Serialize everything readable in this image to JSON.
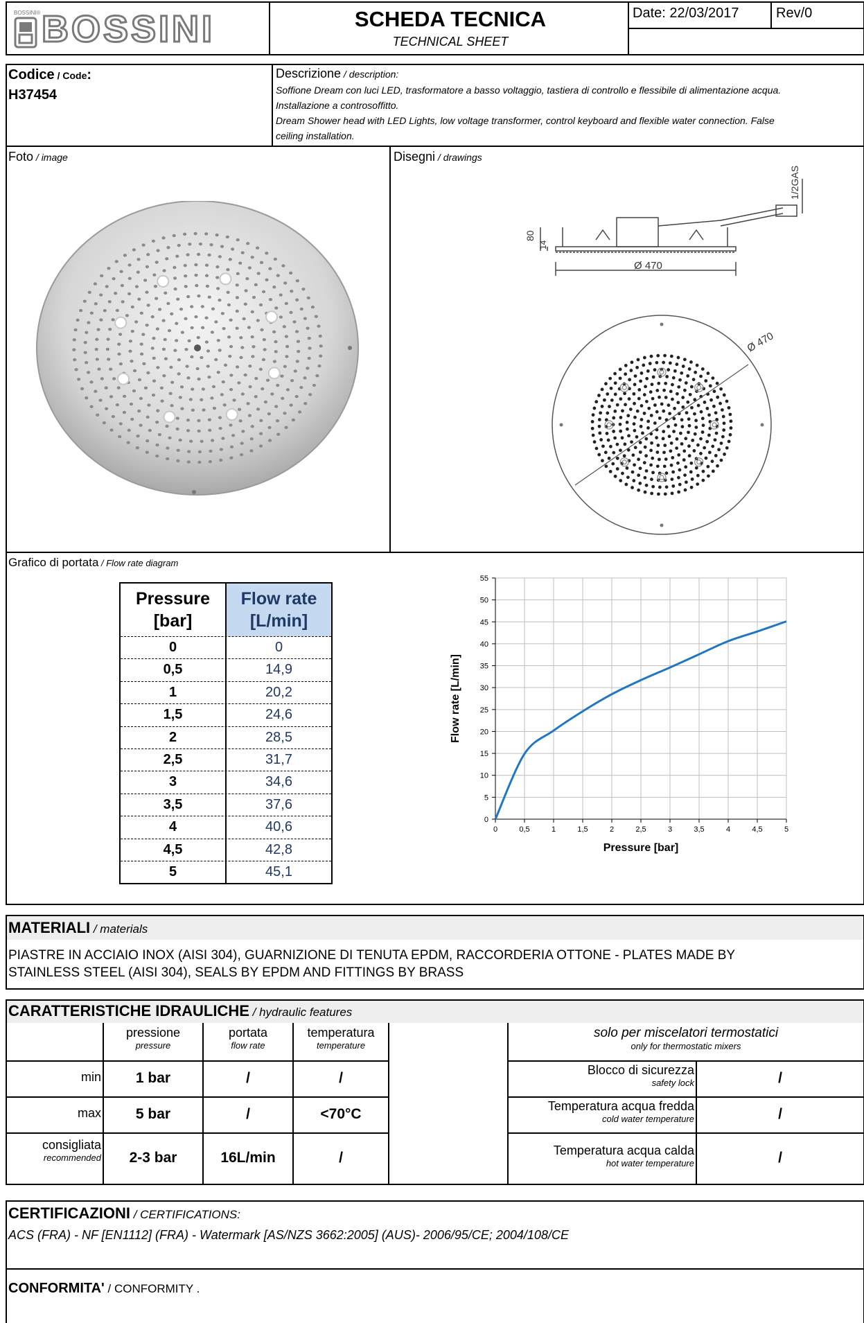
{
  "header": {
    "brand_small": "BOSSINI®",
    "brand": "BOSSINI",
    "title": "SCHEDA TECNICA",
    "subtitle": "TECHNICAL SHEET",
    "date": "Date: 22/03/2017",
    "rev": "Rev/0"
  },
  "code": {
    "label": "Codice",
    "label_en": " / Code",
    "colon": ":",
    "value": "H37454"
  },
  "description": {
    "label": "Descrizione",
    "label_en": " / description:",
    "line1": "Soffione Dream con luci LED, trasformatore a basso voltaggio, tastiera di controllo e flessibile di alimentazione acqua.",
    "line2": "Installazione a controsoffitto.",
    "line3": "Dream Shower head with LED Lights, low voltage transformer, control keyboard and flexible water connection. False",
    "line4": "ceiling installation."
  },
  "photo": {
    "label": "Foto",
    "label_en": " / image"
  },
  "drawings": {
    "label": "Disegni",
    "label_en": " / drawings",
    "dim_gas": "1/2GAS",
    "dim_80": "80",
    "dim_14": "14",
    "dim_diam_side": "Ø 470",
    "dim_diam_top": "Ø 470"
  },
  "flow": {
    "label": "Grafico di portata",
    "label_en": " / Flow rate diagram",
    "table_headers": [
      "Pressure [bar]",
      "Flow rate [L/min]"
    ],
    "table_header_lines": [
      [
        "Pressure",
        "[bar]"
      ],
      [
        "Flow rate",
        "[L/min]"
      ]
    ],
    "pressure": [
      "0",
      "0,5",
      "1",
      "1,5",
      "2",
      "2,5",
      "3",
      "3,5",
      "4",
      "4,5",
      "5"
    ],
    "flowrate": [
      "0",
      "14,9",
      "20,2",
      "24,6",
      "28,5",
      "31,7",
      "34,6",
      "37,6",
      "40,6",
      "42,8",
      "45,1"
    ]
  },
  "chart_data": {
    "type": "line",
    "title": "",
    "xlabel": "Pressure [bar]",
    "ylabel": "Flow rate [L/min]",
    "xlim": [
      0,
      5
    ],
    "ylim": [
      0,
      55
    ],
    "xticks": [
      "0",
      "0,5",
      "1",
      "1,5",
      "2",
      "2,5",
      "3",
      "3,5",
      "4",
      "4,5",
      "5"
    ],
    "yticks": [
      "0",
      "5",
      "10",
      "15",
      "20",
      "25",
      "30",
      "35",
      "40",
      "45",
      "50",
      "55"
    ],
    "grid": true,
    "line_color": "#1f77c4",
    "x": [
      0,
      0.5,
      1,
      1.5,
      2,
      2.5,
      3,
      3.5,
      4,
      4.5,
      5
    ],
    "values": [
      0,
      14.9,
      20.2,
      24.6,
      28.5,
      31.7,
      34.6,
      37.6,
      40.6,
      42.8,
      45.1
    ]
  },
  "materials": {
    "title": "MATERIALI",
    "title_en": " / materials",
    "line1": "PIASTRE IN ACCIAIO INOX (AISI 304), GUARNIZIONE DI TENUTA EPDM, RACCORDERIA OTTONE - PLATES MADE BY",
    "line2": "STAINLESS STEEL (AISI 304), SEALS BY EPDM AND FITTINGS BY BRASS"
  },
  "hydraulic": {
    "title": "CARATTERISTICHE IDRAULICHE",
    "title_en": " / hydraulic features",
    "col_heads": [
      {
        "it": "pressione",
        "en": "pressure"
      },
      {
        "it": "portata",
        "en": "flow rate"
      },
      {
        "it": "temperatura",
        "en": "temperature"
      }
    ],
    "rows": [
      {
        "label": "min",
        "label_en": "",
        "values": [
          "1 bar",
          "/",
          "/"
        ]
      },
      {
        "label": "max",
        "label_en": "",
        "values": [
          "5 bar",
          "/",
          "<70°C"
        ]
      },
      {
        "label": "consigliata",
        "label_en": "recommended",
        "values": [
          "2-3 bar",
          "16L/min",
          "/"
        ]
      }
    ],
    "thermo_title": "solo per miscelatori termostatici",
    "thermo_sub": "only for thermostatic mixers",
    "thermo_rows": [
      {
        "it": "Blocco di sicurezza",
        "en": "safety lock",
        "value": "/"
      },
      {
        "it": "Temperatura acqua fredda",
        "en": "cold water temperature",
        "value": "/"
      },
      {
        "it": "Temperatura acqua calda",
        "en": "hot water temperature",
        "value": "/"
      }
    ]
  },
  "certifications": {
    "title": "CERTIFICAZIONI",
    "title_en": " / CERTIFICATIONS:",
    "text": "ACS (FRA) - NF [EN1112] (FRA) - Watermark [AS/NZS 3662:2005] (AUS)- 2006/95/CE; 2004/108/CE"
  },
  "conformity": {
    "title": "CONFORMITA'",
    "title_en": " / CONFORMITY ."
  }
}
